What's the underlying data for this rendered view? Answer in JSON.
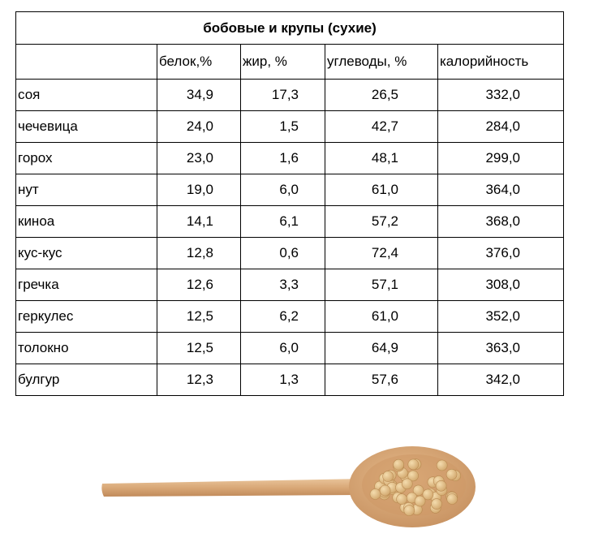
{
  "table": {
    "title": "бобовые  и крупы  (сухие)",
    "header": [
      "белок,%",
      "жир, %",
      "углеводы, %",
      "калорийность"
    ],
    "rows": [
      [
        "соя",
        "34,9",
        "17,3",
        "26,5",
        "332,0"
      ],
      [
        "чечевица",
        "24,0",
        "1,5",
        "42,7",
        "284,0"
      ],
      [
        "горох",
        "23,0",
        "1,6",
        "48,1",
        "299,0"
      ],
      [
        "нут",
        "19,0",
        "6,0",
        "61,0",
        "364,0"
      ],
      [
        "киноа",
        "14,1",
        "6,1",
        "57,2",
        "368,0"
      ],
      [
        "кус-кус",
        "12,8",
        "0,6",
        "72,4",
        "376,0"
      ],
      [
        "гречка",
        "12,6",
        "3,3",
        "57,1",
        "308,0"
      ],
      [
        "геркулес",
        "12,5",
        "6,2",
        "61,0",
        "352,0"
      ],
      [
        "толокно",
        "12,5",
        "6,0",
        "64,9",
        "363,0"
      ],
      [
        "булгур",
        "12,3",
        "1,3",
        "57,6",
        "342,0"
      ]
    ]
  }
}
